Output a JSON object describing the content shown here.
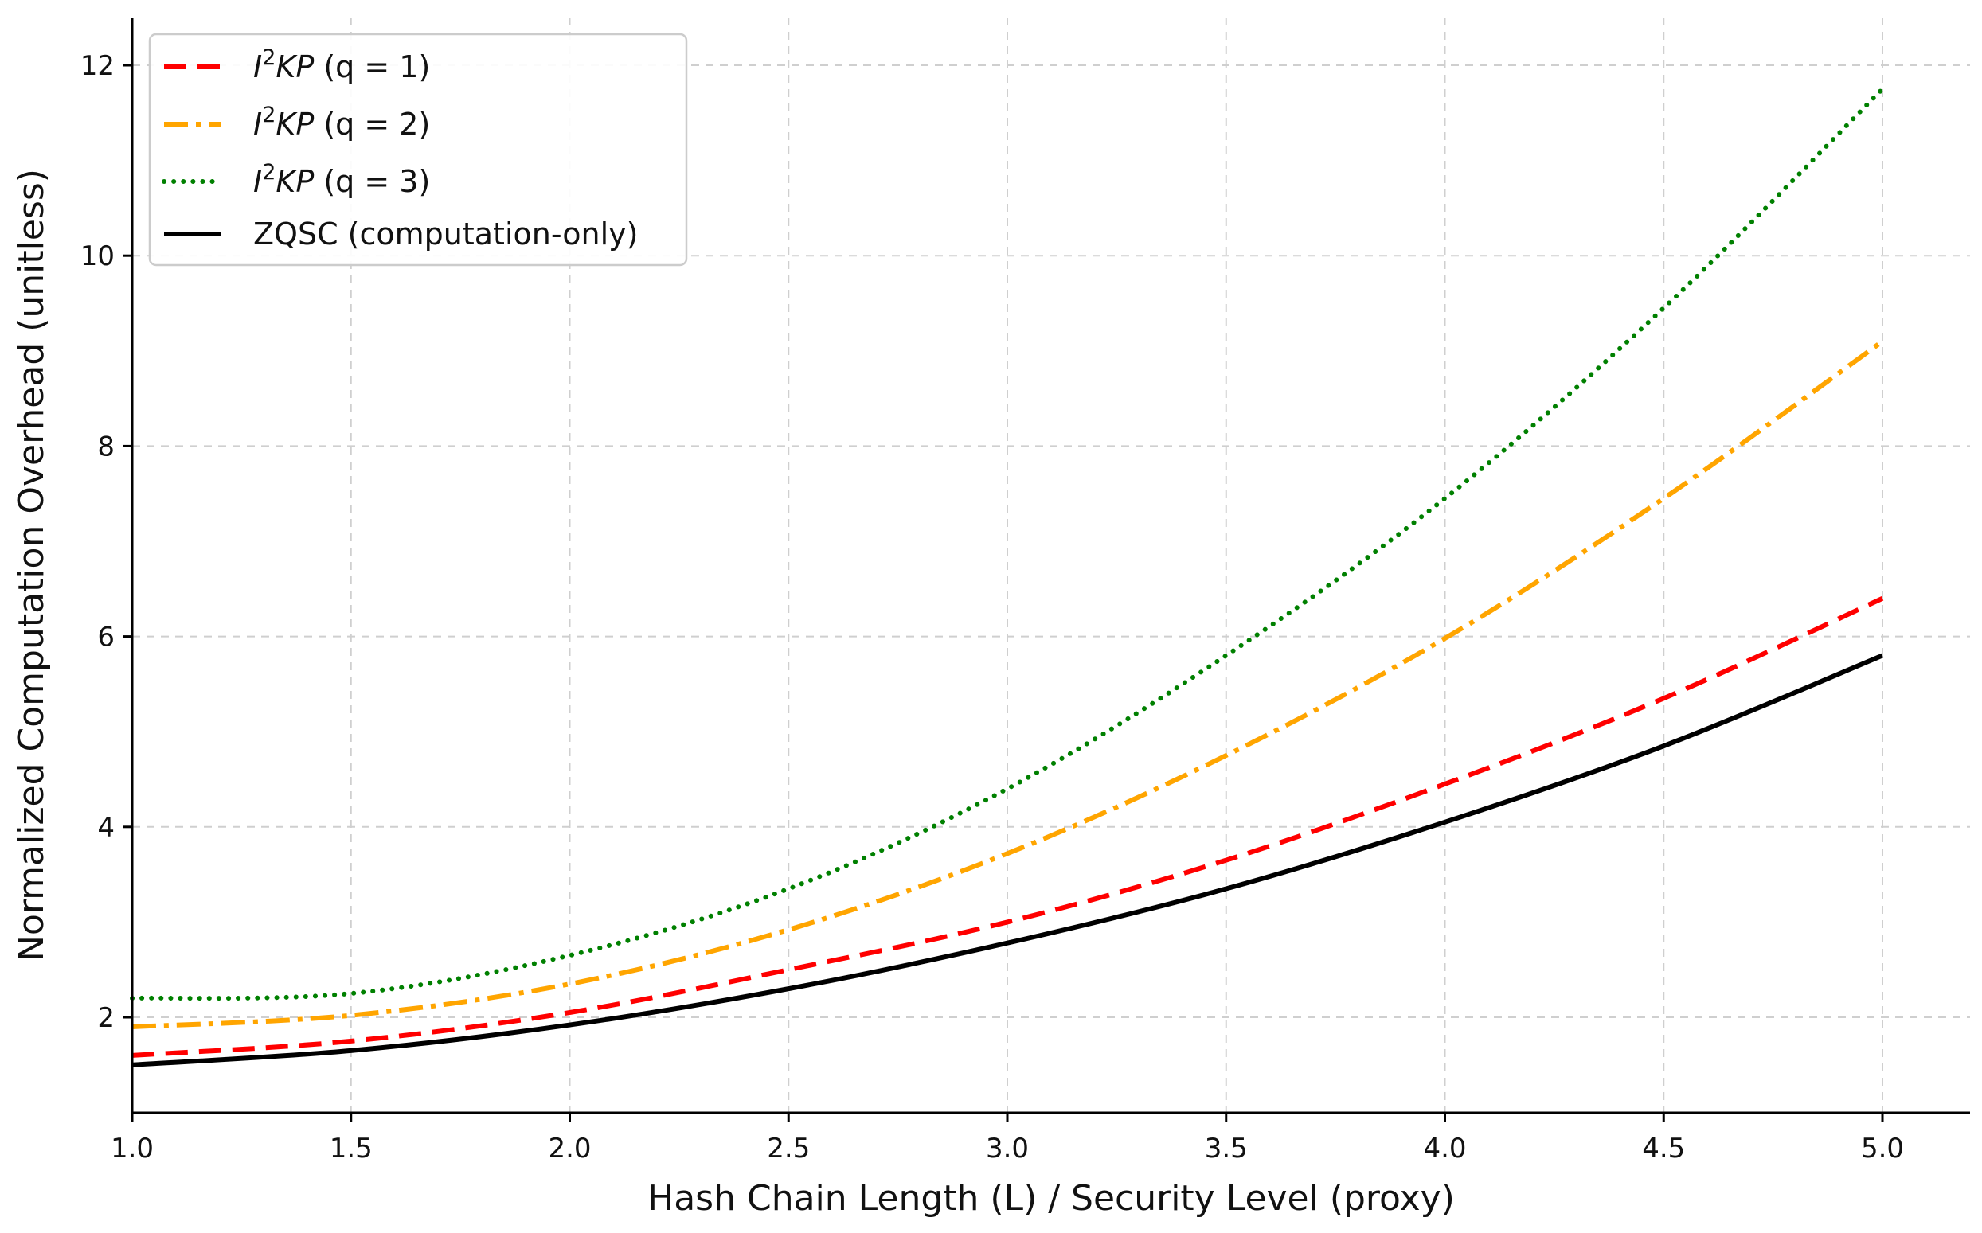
{
  "chart_data": {
    "type": "line",
    "title": "",
    "xlabel": "Hash Chain Length (L) / Security Level (proxy)",
    "ylabel": "Normalized Computation Overhead (unitless)",
    "xlim": [
      1.0,
      5.2
    ],
    "ylim": [
      1.0,
      12.5
    ],
    "grid": true,
    "legend_position": "top-left",
    "x_ticks": [
      1.0,
      1.5,
      2.0,
      2.5,
      3.0,
      3.5,
      4.0,
      4.5,
      5.0
    ],
    "x_tick_labels": [
      "1.0",
      "1.5",
      "2.0",
      "2.5",
      "3.0",
      "3.5",
      "4.0",
      "4.5",
      "5.0"
    ],
    "y_ticks": [
      2,
      4,
      6,
      8,
      10,
      12
    ],
    "y_tick_labels": [
      "2",
      "4",
      "6",
      "8",
      "10",
      "12"
    ],
    "x": [
      1.0,
      1.5,
      2.0,
      2.5,
      3.0,
      3.5,
      4.0,
      4.5,
      5.0
    ],
    "series": [
      {
        "name": "I²KP (q = 1)",
        "legend_italic": "I",
        "legend_sup": "2",
        "legend_italic2": "KP",
        "legend_rest": " (q = 1)",
        "color": "#ff0000",
        "dash": "28,14",
        "linecap": "butt",
        "values": [
          1.6,
          1.75,
          2.05,
          2.5,
          3.0,
          3.65,
          4.45,
          5.35,
          6.4
        ]
      },
      {
        "name": "I²KP (q = 2)",
        "legend_italic": "I",
        "legend_sup": "2",
        "legend_italic2": "KP",
        "legend_rest": " (q = 2)",
        "color": "#ffa500",
        "dash": "30,10,6,10",
        "linecap": "butt",
        "values": [
          1.9,
          2.02,
          2.35,
          2.92,
          3.72,
          4.75,
          5.98,
          7.45,
          9.1
        ]
      },
      {
        "name": "I²KP (q = 3)",
        "legend_italic": "I",
        "legend_sup": "2",
        "legend_italic2": "KP",
        "legend_rest": " (q = 3)",
        "color": "#008000",
        "dash": "0.1,12",
        "linecap": "round",
        "values": [
          2.2,
          2.25,
          2.65,
          3.35,
          4.4,
          5.8,
          7.45,
          9.45,
          11.75
        ]
      },
      {
        "name": "ZQSC (computation-only)",
        "legend_italic": "",
        "legend_sup": "",
        "legend_italic2": "",
        "legend_rest": "ZQSC (computation-only)",
        "color": "#000000",
        "dash": "",
        "linecap": "butt",
        "values": [
          1.5,
          1.65,
          1.92,
          2.3,
          2.78,
          3.35,
          4.05,
          4.85,
          5.8
        ]
      }
    ]
  }
}
